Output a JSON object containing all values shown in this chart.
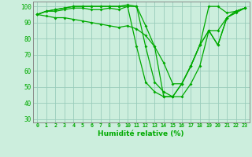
{
  "xlabel": "Humidité relative (%)",
  "background_color": "#cceedd",
  "line_color": "#00aa00",
  "grid_color": "#99ccbb",
  "xlim": [
    -0.5,
    23.5
  ],
  "ylim": [
    28,
    103
  ],
  "yticks": [
    30,
    40,
    50,
    60,
    70,
    80,
    90,
    100
  ],
  "xticks": [
    0,
    1,
    2,
    3,
    4,
    5,
    6,
    7,
    8,
    9,
    10,
    11,
    12,
    13,
    14,
    15,
    16,
    17,
    18,
    19,
    20,
    21,
    22,
    23
  ],
  "series": [
    [
      95,
      97,
      98,
      99,
      100,
      100,
      100,
      100,
      100,
      100,
      100,
      75,
      53,
      47,
      44,
      44,
      52,
      63,
      76,
      100,
      100,
      96,
      97,
      99
    ],
    [
      95,
      97,
      98,
      99,
      100,
      100,
      100,
      100,
      100,
      100,
      101,
      100,
      75,
      53,
      47,
      44,
      44,
      52,
      63,
      85,
      76,
      93,
      97,
      99
    ],
    [
      95,
      97,
      97,
      98,
      99,
      99,
      98,
      98,
      99,
      98,
      100,
      100,
      88,
      75,
      44,
      44,
      52,
      63,
      76,
      85,
      85,
      93,
      96,
      99
    ],
    [
      95,
      94,
      93,
      93,
      92,
      91,
      90,
      89,
      88,
      87,
      88,
      86,
      82,
      75,
      65,
      52,
      52,
      63,
      76,
      85,
      76,
      93,
      97,
      99
    ]
  ]
}
